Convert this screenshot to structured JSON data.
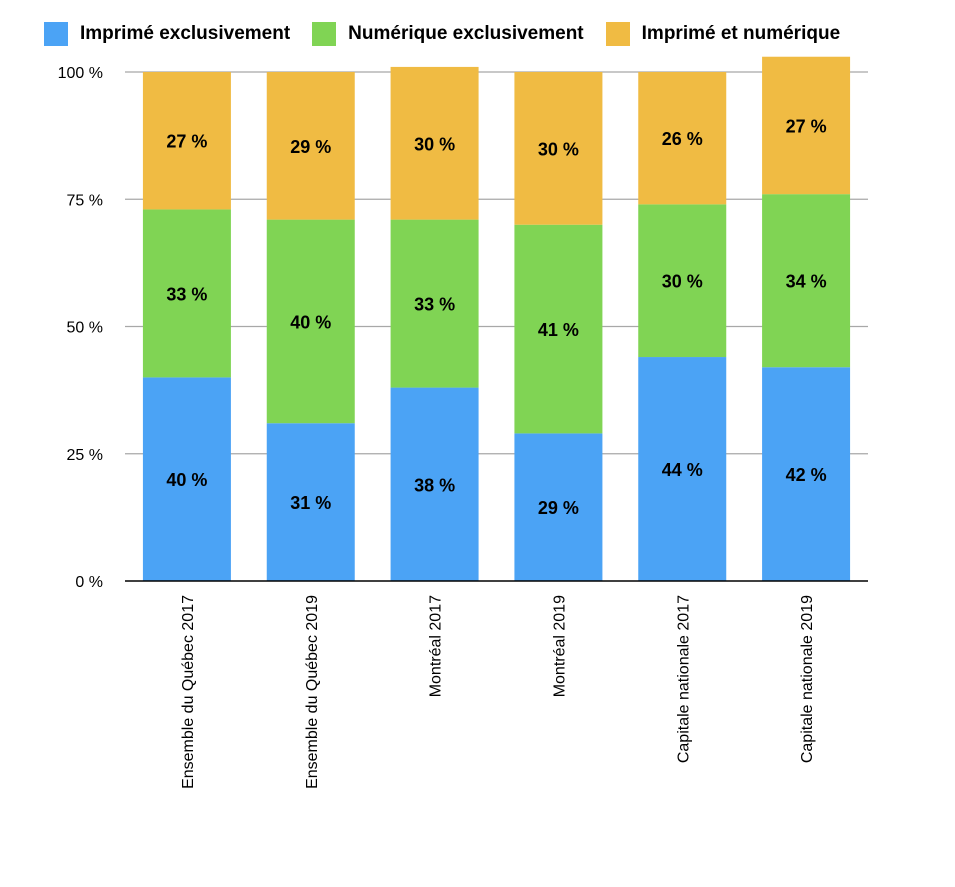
{
  "chart_data": {
    "type": "bar",
    "stacked": true,
    "categories": [
      "Ensemble du Québec 2017",
      "Ensemble du Québec 2019",
      "Montréal 2017",
      "Montréal 2019",
      "Capitale nationale 2017",
      "Capitale nationale 2019"
    ],
    "series": [
      {
        "name": "Imprimé exclusivement",
        "color": "#4ba3f5",
        "values": [
          40,
          31,
          38,
          29,
          44,
          42
        ],
        "labels": [
          "40 %",
          "31 %",
          "38 %",
          "29 %",
          "44 %",
          "42 %"
        ]
      },
      {
        "name": "Numérique exclusivement",
        "color": "#80d454",
        "values": [
          33,
          40,
          33,
          41,
          30,
          34
        ],
        "labels": [
          "33 %",
          "40 %",
          "33 %",
          "41 %",
          "30 %",
          "34 %"
        ]
      },
      {
        "name": "Imprimé et numérique",
        "color": "#f0bb43",
        "values": [
          27,
          29,
          30,
          30,
          26,
          27
        ],
        "labels": [
          "27 %",
          "29 %",
          "30 %",
          "30 %",
          "26 %",
          "27 %"
        ]
      }
    ],
    "y_ticks": [
      {
        "value": 0,
        "label": "0 %"
      },
      {
        "value": 25,
        "label": "25 %"
      },
      {
        "value": 50,
        "label": "50 %"
      },
      {
        "value": 75,
        "label": "75 %"
      },
      {
        "value": 100,
        "label": "100 %"
      }
    ],
    "ylim": [
      0,
      100
    ],
    "grid": true,
    "legend_position": "top"
  }
}
